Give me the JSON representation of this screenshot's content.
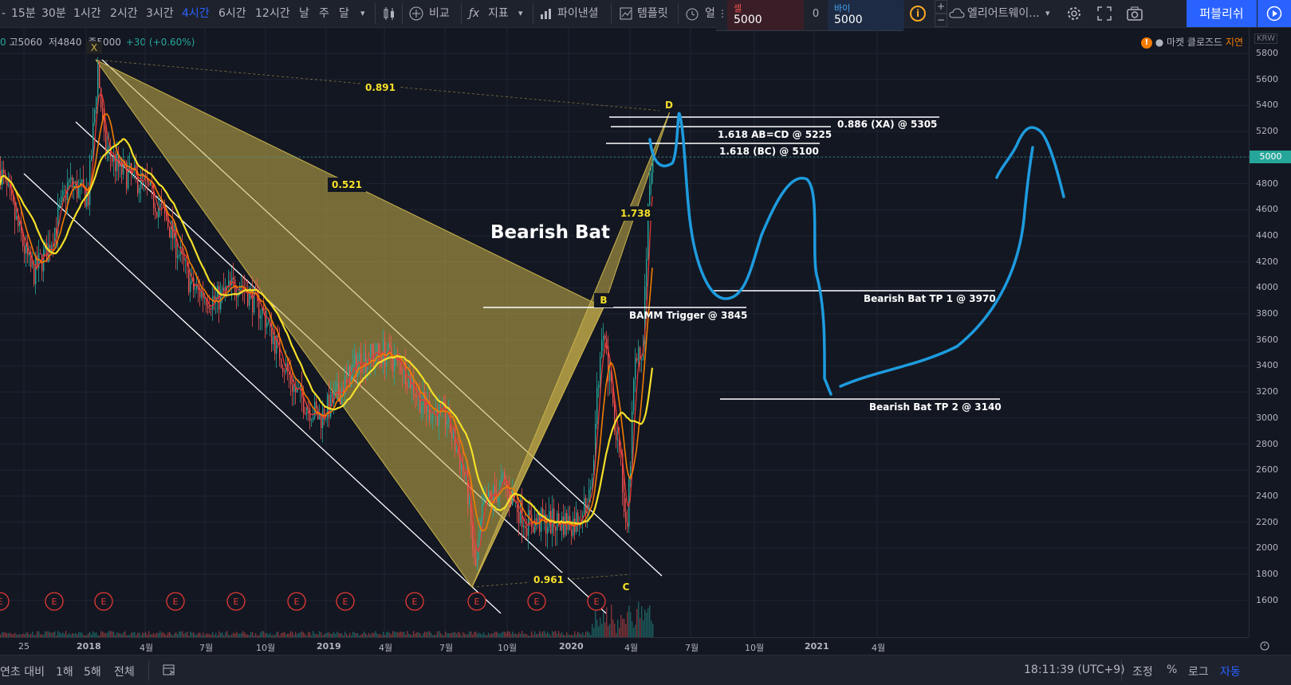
{
  "toolbar": {
    "intervals": [
      {
        "label": "15분",
        "active": false
      },
      {
        "label": "30분",
        "active": false
      },
      {
        "label": "1시간",
        "active": false
      },
      {
        "label": "2시간",
        "active": false
      },
      {
        "label": "3시간",
        "active": false
      },
      {
        "label": "4시간",
        "active": true
      },
      {
        "label": "6시간",
        "active": false
      },
      {
        "label": "12시간",
        "active": false
      },
      {
        "label": "날",
        "active": false
      },
      {
        "label": "주",
        "active": false
      },
      {
        "label": "달",
        "active": false
      }
    ],
    "compare": "비교",
    "indicators": "지표",
    "financials": "파이낸셜",
    "templates": "템플릿",
    "alert_partial": "얼",
    "sell_label": "셀",
    "sell_value": "5000",
    "spread": "0",
    "buy_label": "바이",
    "buy_value": "5000",
    "layout_name": "엘리어트웨이...",
    "publish": "퍼블리쉬"
  },
  "legend": {
    "high": "고5060",
    "low": "저4840",
    "close": "종5000",
    "change": "+30 (+0.60%)"
  },
  "market": {
    "status": "● 마켓 클로즈드",
    "delay": "지연",
    "currency": "KRW",
    "current_price": "5000"
  },
  "price_axis": [
    "5800",
    "5600",
    "5400",
    "5200",
    "5000",
    "4800",
    "4600",
    "4400",
    "4200",
    "4000",
    "3800",
    "3600",
    "3400",
    "3200",
    "3000",
    "2800",
    "2600",
    "2400",
    "2200",
    "2000",
    "1800",
    "1600"
  ],
  "time_axis": [
    "25",
    "2018",
    "4월",
    "7월",
    "10월",
    "2019",
    "4월",
    "7월",
    "10월",
    "2020",
    "4월",
    "7월",
    "10월",
    "2021",
    "4월"
  ],
  "annotations": {
    "title": "Bearish Bat",
    "x": "X",
    "b": "B",
    "c": "C",
    "d": "D",
    "r_xb": "0.891",
    "r_ab": "0.521",
    "r_cd": "1.738",
    "r_bc": "0.961",
    "xa886": "0.886 (XA) @ 5305",
    "abcd": "1.618 AB=CD @ 5225",
    "bc1618": "1.618 (BC) @ 5100",
    "bamm": "BAMM Trigger @ 3845",
    "tp1": "Bearish Bat TP 1 @ 3970",
    "tp2": "Bearish Bat TP 2 @ 3140",
    "earnings": "E"
  },
  "bottom": {
    "range_partial": "연초 대비",
    "r1y": "1해",
    "r5y": "5해",
    "all": "전체",
    "time": "18:11:39 (UTC+9)",
    "adjust": "조정",
    "percent": "%",
    "log": "로그",
    "auto": "자동"
  },
  "colors": {
    "bg": "#131722",
    "pattern": "#cbb34b",
    "projection": "#1e9bde",
    "ma_yellow": "#f5e028",
    "ma_orange": "#f57c00",
    "ma_red": "#e53935",
    "accent": "#2962ff"
  }
}
